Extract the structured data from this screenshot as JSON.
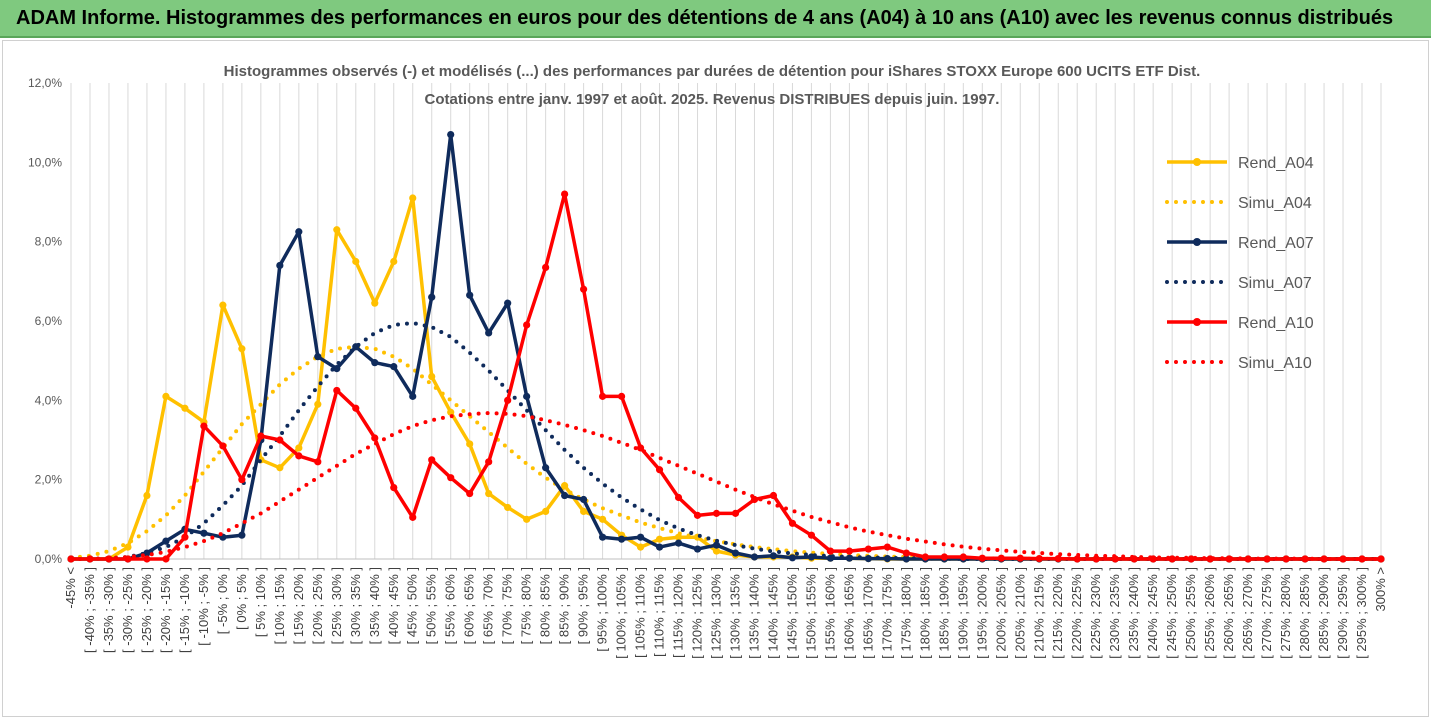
{
  "banner": {
    "title": "ADAM Informe. Histogrammes des performances en euros pour des détentions de 4 ans (A04) à 10 ans (A10) avec les revenus connus distribués"
  },
  "chart_data": {
    "type": "line",
    "title_lines": [
      "Histogrammes observés (-) et modélisés (...) des performances par durées de détention pour iShares STOXX Europe 600 UCITS ETF Dist.",
      "Cotations entre janv. 1997 et août. 2025. Revenus DISTRIBUES depuis juin. 1997."
    ],
    "yticks": [
      "0,0%",
      "2,0%",
      "4,0%",
      "6,0%",
      "8,0%",
      "10,0%",
      "12,0%"
    ],
    "ylim": [
      0,
      12
    ],
    "grid": "vertical",
    "legend_position": "right",
    "categories": [
      "-45% <",
      "[ -40% ; -35% ]",
      "[ -35% ; -30% ]",
      "[ -30% ; -25% ]",
      "[ -25% ; -20% ]",
      "[ -20% ; -15% ]",
      "[ -15% ; -10% ]",
      "[ -10% ; -5% ]",
      "[ -5% ; 0% ]",
      "[ 0% ; 5% ]",
      "[ 5% ; 10% ]",
      "[ 10% ; 15% ]",
      "[ 15% ; 20% ]",
      "[ 20% ; 25% ]",
      "[ 25% ; 30% ]",
      "[ 30% ; 35% ]",
      "[ 35% ; 40% ]",
      "[ 40% ; 45% ]",
      "[ 45% ; 50% ]",
      "[ 50% ; 55% ]",
      "[ 55% ; 60% ]",
      "[ 60% ; 65% ]",
      "[ 65% ; 70% ]",
      "[ 70% ; 75% ]",
      "[ 75% ; 80% ]",
      "[ 80% ; 85% ]",
      "[ 85% ; 90% ]",
      "[ 90% ; 95% ]",
      "[ 95% ; 100% ]",
      "[ 100% ; 105% ]",
      "[ 105% ; 110% ]",
      "[ 110% ; 115% ]",
      "[ 115% ; 120% ]",
      "[ 120% ; 125% ]",
      "[ 125% ; 130% ]",
      "[ 130% ; 135% ]",
      "[ 135% ; 140% ]",
      "[ 140% ; 145% ]",
      "[ 145% ; 150% ]",
      "[ 150% ; 155% ]",
      "[ 155% ; 160% ]",
      "[ 160% ; 165% ]",
      "[ 165% ; 170% ]",
      "[ 170% ; 175% ]",
      "[ 175% ; 180% ]",
      "[ 180% ; 185% ]",
      "[ 185% ; 190% ]",
      "[ 190% ; 195% ]",
      "[ 195% ; 200% ]",
      "[ 200% ; 205% ]",
      "[ 205% ; 210% ]",
      "[ 210% ; 215% ]",
      "[ 215% ; 220% ]",
      "[ 220% ; 225% ]",
      "[ 225% ; 230% ]",
      "[ 230% ; 235% ]",
      "[ 235% ; 240% ]",
      "[ 240% ; 245% ]",
      "[ 245% ; 250% ]",
      "[ 250% ; 255% ]",
      "[ 255% ; 260% ]",
      "[ 260% ; 265% ]",
      "[ 265% ; 270% ]",
      "[ 270% ; 275% ]",
      "[ 275% ; 280% ]",
      "[ 280% ; 285% ]",
      "[ 285% ; 290% ]",
      "[ 290% ; 295% ]",
      "[ 295% ; 300% ]",
      "300% >"
    ],
    "series": [
      {
        "name": "Rend_A04",
        "style": "solid",
        "color": "#ffc000",
        "values": [
          0,
          0,
          0,
          0.3,
          1.6,
          4.1,
          3.8,
          3.45,
          6.4,
          5.3,
          2.5,
          2.3,
          2.8,
          3.9,
          8.3,
          7.5,
          6.45,
          7.5,
          9.1,
          4.6,
          3.7,
          2.9,
          1.65,
          1.3,
          1.0,
          1.2,
          1.85,
          1.2,
          1.0,
          0.6,
          0.3,
          0.5,
          0.55,
          0.55,
          0.2,
          0.1,
          0.05,
          0.05,
          0.05,
          0.02,
          0.02,
          0.02,
          0.01,
          0,
          0,
          0,
          0,
          0,
          0,
          0,
          0,
          0,
          0,
          0,
          0,
          0,
          0,
          0,
          0,
          0,
          0,
          0,
          0,
          0,
          0,
          0,
          0,
          0,
          0,
          0
        ]
      },
      {
        "name": "Simu_A04",
        "style": "dotted",
        "color": "#ffc000",
        "values": [
          0.03,
          0.08,
          0.2,
          0.4,
          0.7,
          1.1,
          1.6,
          2.2,
          2.8,
          3.4,
          3.9,
          4.4,
          4.8,
          5.1,
          5.3,
          5.35,
          5.3,
          5.1,
          4.8,
          4.4,
          4.0,
          3.6,
          3.2,
          2.8,
          2.4,
          2.05,
          1.75,
          1.5,
          1.28,
          1.1,
          0.92,
          0.78,
          0.65,
          0.54,
          0.45,
          0.37,
          0.3,
          0.25,
          0.2,
          0.16,
          0.13,
          0.1,
          0.08,
          0.06,
          0.05,
          0.04,
          0.03,
          0.02,
          0.02,
          0.01,
          0.01,
          0.01,
          0,
          0,
          0,
          0,
          0,
          0,
          0,
          0,
          0,
          0,
          0,
          0,
          0,
          0,
          0,
          0,
          0,
          0
        ]
      },
      {
        "name": "Rend_A07",
        "style": "solid",
        "color": "#0f2b5c",
        "values": [
          0,
          0,
          0,
          0,
          0.15,
          0.45,
          0.75,
          0.65,
          0.55,
          0.6,
          3.0,
          7.4,
          8.25,
          5.1,
          4.8,
          5.35,
          4.95,
          4.85,
          4.1,
          6.6,
          10.7,
          6.65,
          5.7,
          6.45,
          4.1,
          2.3,
          1.6,
          1.5,
          0.55,
          0.5,
          0.55,
          0.3,
          0.4,
          0.25,
          0.35,
          0.15,
          0.05,
          0.08,
          0.03,
          0.05,
          0.02,
          0.02,
          0.01,
          0.01,
          0,
          0,
          0,
          0,
          0,
          0,
          0,
          0,
          0,
          0,
          0,
          0,
          0,
          0,
          0,
          0,
          0,
          0,
          0,
          0,
          0,
          0,
          0,
          0,
          0,
          0
        ]
      },
      {
        "name": "Simu_A07",
        "style": "dotted",
        "color": "#0f2b5c",
        "values": [
          0,
          0,
          0.02,
          0.05,
          0.15,
          0.3,
          0.55,
          0.9,
          1.35,
          1.85,
          2.5,
          3.1,
          3.75,
          4.35,
          4.9,
          5.35,
          5.7,
          5.9,
          5.95,
          5.85,
          5.6,
          5.2,
          4.75,
          4.25,
          3.75,
          3.25,
          2.75,
          2.3,
          1.9,
          1.55,
          1.25,
          0.98,
          0.77,
          0.6,
          0.46,
          0.35,
          0.26,
          0.19,
          0.14,
          0.1,
          0.07,
          0.05,
          0.04,
          0.03,
          0.02,
          0.01,
          0.01,
          0,
          0,
          0,
          0,
          0,
          0,
          0,
          0,
          0,
          0,
          0,
          0,
          0,
          0,
          0,
          0,
          0,
          0,
          0,
          0,
          0,
          0,
          0
        ]
      },
      {
        "name": "Rend_A10",
        "style": "solid",
        "color": "#ff0000",
        "values": [
          0,
          0,
          0,
          0,
          0,
          0,
          0.55,
          3.35,
          2.85,
          2.0,
          3.1,
          3.0,
          2.6,
          2.45,
          4.25,
          3.8,
          3.05,
          1.8,
          1.05,
          2.5,
          2.05,
          1.65,
          2.45,
          4.0,
          5.9,
          7.35,
          9.2,
          6.8,
          4.1,
          4.1,
          2.8,
          2.25,
          1.55,
          1.1,
          1.15,
          1.15,
          1.5,
          1.6,
          0.9,
          0.6,
          0.2,
          0.2,
          0.25,
          0.3,
          0.15,
          0.05,
          0.05,
          0.05,
          0.02,
          0.02,
          0.02,
          0.01,
          0.01,
          0,
          0,
          0,
          0,
          0,
          0,
          0,
          0,
          0,
          0,
          0,
          0,
          0,
          0,
          0,
          0,
          0
        ]
      },
      {
        "name": "Simu_A10",
        "style": "dotted",
        "color": "#ff0000",
        "values": [
          0,
          0,
          0.02,
          0.05,
          0.1,
          0.18,
          0.3,
          0.45,
          0.65,
          0.9,
          1.15,
          1.45,
          1.75,
          2.05,
          2.35,
          2.65,
          2.9,
          3.15,
          3.35,
          3.5,
          3.6,
          3.65,
          3.68,
          3.66,
          3.6,
          3.5,
          3.38,
          3.25,
          3.1,
          2.93,
          2.75,
          2.55,
          2.35,
          2.15,
          1.95,
          1.75,
          1.56,
          1.38,
          1.22,
          1.06,
          0.93,
          0.8,
          0.69,
          0.6,
          0.51,
          0.44,
          0.37,
          0.31,
          0.26,
          0.22,
          0.18,
          0.15,
          0.12,
          0.1,
          0.08,
          0.07,
          0.05,
          0.04,
          0.03,
          0.03,
          0.02,
          0.02,
          0.01,
          0.01,
          0.01,
          0.01,
          0,
          0,
          0,
          0
        ]
      }
    ]
  }
}
